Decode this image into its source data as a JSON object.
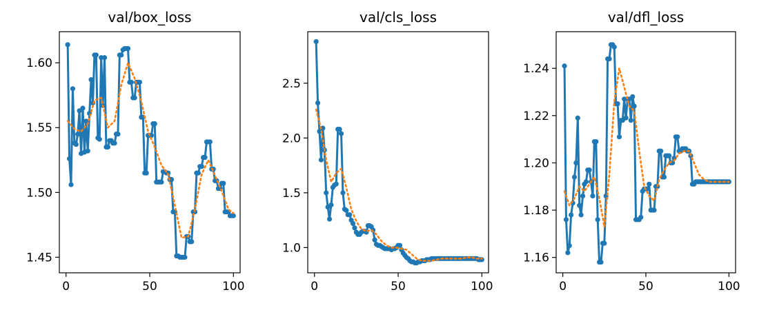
{
  "chart_data": [
    {
      "type": "line",
      "title": "val/box_loss",
      "xlabel": "",
      "ylabel": "",
      "xlim": [
        -4,
        104
      ],
      "ylim": [
        1.438,
        1.624
      ],
      "xticks": [
        0,
        50,
        100
      ],
      "xtick_labels": [
        "0",
        "50",
        "100"
      ],
      "yticks": [
        1.45,
        1.5,
        1.55,
        1.6
      ],
      "ytick_labels": [
        "1.45",
        "1.50",
        "1.55",
        "1.60"
      ],
      "grid": false,
      "series": [
        {
          "style": "solid-markers",
          "color": "#1f77b4",
          "x": [
            1,
            2,
            3,
            4,
            5,
            6,
            7,
            8,
            9,
            10,
            11,
            12,
            13,
            14,
            15,
            16,
            17,
            18,
            19,
            20,
            21,
            22,
            23,
            24,
            25,
            26,
            27,
            28,
            29,
            30,
            31,
            32,
            33,
            34,
            35,
            36,
            37,
            38,
            39,
            40,
            41,
            42,
            43,
            44,
            45,
            46,
            47,
            48,
            49,
            50,
            51,
            52,
            53,
            54,
            55,
            56,
            57,
            58,
            59,
            60,
            61,
            62,
            63,
            64,
            65,
            66,
            67,
            68,
            69,
            70,
            71,
            72,
            73,
            74,
            75,
            76,
            77,
            78,
            79,
            80,
            81,
            82,
            83,
            84,
            85,
            86,
            87,
            88,
            89,
            90,
            91,
            92,
            93,
            94,
            95,
            96,
            97,
            98,
            99,
            100
          ],
          "y": [
            1.614,
            1.526,
            1.506,
            1.58,
            1.538,
            1.537,
            1.545,
            1.563,
            1.53,
            1.565,
            1.531,
            1.555,
            1.532,
            1.561,
            1.587,
            1.569,
            1.606,
            1.606,
            1.542,
            1.541,
            1.604,
            1.567,
            1.604,
            1.535,
            1.535,
            1.54,
            1.54,
            1.538,
            1.538,
            1.545,
            1.545,
            1.606,
            1.606,
            1.61,
            1.611,
            1.611,
            1.611,
            1.585,
            1.585,
            1.573,
            1.573,
            1.585,
            1.585,
            1.585,
            1.558,
            1.558,
            1.515,
            1.515,
            1.544,
            1.544,
            1.544,
            1.553,
            1.553,
            1.508,
            1.508,
            1.508,
            1.508,
            1.516,
            1.516,
            1.515,
            1.515,
            1.51,
            1.51,
            1.485,
            1.485,
            1.451,
            1.451,
            1.45,
            1.45,
            1.45,
            1.45,
            1.466,
            1.466,
            1.462,
            1.462,
            1.485,
            1.485,
            1.515,
            1.515,
            1.52,
            1.52,
            1.527,
            1.527,
            1.539,
            1.539,
            1.539,
            1.518,
            1.518,
            1.509,
            1.509,
            1.503,
            1.503,
            1.507,
            1.507,
            1.485,
            1.485,
            1.485,
            1.482,
            1.482,
            1.482
          ]
        },
        {
          "style": "dotted",
          "color": "#ff7f0e",
          "x": [
            1,
            5,
            9,
            13,
            17,
            21,
            25,
            29,
            33,
            37,
            41,
            45,
            49,
            53,
            57,
            61,
            65,
            69,
            73,
            77,
            81,
            85,
            89,
            93,
            97,
            100
          ],
          "y": [
            1.555,
            1.549,
            1.547,
            1.553,
            1.571,
            1.573,
            1.55,
            1.555,
            1.583,
            1.6,
            1.588,
            1.57,
            1.547,
            1.535,
            1.521,
            1.514,
            1.49,
            1.465,
            1.466,
            1.487,
            1.514,
            1.525,
            1.513,
            1.501,
            1.487,
            1.484
          ]
        }
      ]
    },
    {
      "type": "line",
      "title": "val/cls_loss",
      "xlabel": "",
      "ylabel": "",
      "xlim": [
        -4,
        104
      ],
      "ylim": [
        0.77,
        2.97
      ],
      "xticks": [
        0,
        50,
        100
      ],
      "xtick_labels": [
        "0",
        "50",
        "100"
      ],
      "yticks": [
        1.0,
        1.5,
        2.0,
        2.5
      ],
      "ytick_labels": [
        "1.0",
        "1.5",
        "2.0",
        "2.5"
      ],
      "grid": false,
      "series": [
        {
          "style": "solid-markers",
          "color": "#1f77b4",
          "x": [
            1,
            2,
            3,
            4,
            5,
            6,
            7,
            8,
            9,
            10,
            11,
            12,
            13,
            14,
            15,
            16,
            17,
            18,
            19,
            20,
            21,
            22,
            23,
            24,
            25,
            26,
            27,
            28,
            29,
            30,
            31,
            32,
            33,
            34,
            35,
            36,
            37,
            38,
            39,
            40,
            41,
            42,
            43,
            44,
            45,
            46,
            47,
            48,
            49,
            50,
            51,
            52,
            53,
            54,
            55,
            56,
            57,
            58,
            59,
            60,
            61,
            62,
            63,
            64,
            65,
            66,
            67,
            68,
            69,
            70,
            71,
            72,
            73,
            74,
            75,
            76,
            77,
            78,
            79,
            80,
            81,
            82,
            83,
            84,
            85,
            86,
            87,
            88,
            89,
            90,
            91,
            92,
            93,
            94,
            95,
            96,
            97,
            98,
            99,
            100
          ],
          "y": [
            2.88,
            2.32,
            2.06,
            1.8,
            2.09,
            1.89,
            1.5,
            1.37,
            1.26,
            1.39,
            1.55,
            1.57,
            1.58,
            2.08,
            2.08,
            2.04,
            1.5,
            1.35,
            1.34,
            1.3,
            1.3,
            1.25,
            1.22,
            1.18,
            1.14,
            1.12,
            1.12,
            1.14,
            1.15,
            1.15,
            1.14,
            1.2,
            1.2,
            1.19,
            1.16,
            1.07,
            1.03,
            1.02,
            1.02,
            1.01,
            1.0,
            0.99,
            0.99,
            0.99,
            0.99,
            0.98,
            0.99,
            0.99,
            1.0,
            1.02,
            1.02,
            0.98,
            0.95,
            0.93,
            0.91,
            0.9,
            0.88,
            0.87,
            0.87,
            0.86,
            0.86,
            0.87,
            0.87,
            0.88,
            0.88,
            0.88,
            0.89,
            0.89,
            0.89,
            0.9,
            0.9,
            0.9,
            0.9,
            0.9,
            0.9,
            0.9,
            0.9,
            0.9,
            0.9,
            0.9,
            0.9,
            0.9,
            0.9,
            0.9,
            0.9,
            0.9,
            0.9,
            0.9,
            0.9,
            0.9,
            0.9,
            0.9,
            0.9,
            0.9,
            0.9,
            0.9,
            0.9,
            0.89,
            0.89,
            0.89
          ]
        },
        {
          "style": "dotted",
          "color": "#ff7f0e",
          "x": [
            1,
            4,
            7,
            10,
            13,
            16,
            19,
            22,
            25,
            28,
            31,
            34,
            37,
            40,
            43,
            46,
            49,
            52,
            55,
            58,
            61,
            64,
            67,
            70,
            73,
            76,
            79,
            82,
            85,
            88,
            91,
            94,
            97,
            100
          ],
          "y": [
            2.26,
            2.08,
            1.8,
            1.6,
            1.68,
            1.72,
            1.55,
            1.35,
            1.24,
            1.17,
            1.15,
            1.16,
            1.12,
            1.06,
            1.02,
            1.0,
            1.0,
            0.99,
            0.98,
            0.94,
            0.9,
            0.88,
            0.88,
            0.88,
            0.89,
            0.9,
            0.9,
            0.9,
            0.9,
            0.9,
            0.91,
            0.91,
            0.9,
            0.9
          ]
        }
      ]
    },
    {
      "type": "line",
      "title": "val/dfl_loss",
      "xlabel": "",
      "ylabel": "",
      "xlim": [
        -4,
        104
      ],
      "ylim": [
        1.1535,
        1.2555
      ],
      "xticks": [
        0,
        50,
        100
      ],
      "xtick_labels": [
        "0",
        "50",
        "100"
      ],
      "yticks": [
        1.16,
        1.18,
        1.2,
        1.22,
        1.24
      ],
      "ytick_labels": [
        "1.16",
        "1.18",
        "1.20",
        "1.22",
        "1.24"
      ],
      "grid": false,
      "series": [
        {
          "style": "solid-markers",
          "color": "#1f77b4",
          "x": [
            1,
            2,
            3,
            4,
            5,
            6,
            7,
            8,
            9,
            10,
            11,
            12,
            13,
            14,
            15,
            16,
            17,
            18,
            19,
            20,
            21,
            22,
            23,
            24,
            25,
            26,
            27,
            28,
            29,
            30,
            31,
            32,
            33,
            34,
            35,
            36,
            37,
            38,
            39,
            40,
            41,
            42,
            43,
            44,
            45,
            46,
            47,
            48,
            49,
            50,
            51,
            52,
            53,
            54,
            55,
            56,
            57,
            58,
            59,
            60,
            61,
            62,
            63,
            64,
            65,
            66,
            67,
            68,
            69,
            70,
            71,
            72,
            73,
            74,
            75,
            76,
            77,
            78,
            79,
            80,
            81,
            82,
            83,
            84,
            85,
            86,
            87,
            88,
            89,
            90,
            91,
            92,
            93,
            94,
            95,
            96,
            97,
            98,
            99,
            100
          ],
          "y": [
            1.241,
            1.176,
            1.162,
            1.165,
            1.178,
            1.183,
            1.194,
            1.2,
            1.219,
            1.182,
            1.178,
            1.186,
            1.191,
            1.192,
            1.197,
            1.197,
            1.192,
            1.186,
            1.209,
            1.209,
            1.176,
            1.158,
            1.158,
            1.166,
            1.166,
            1.186,
            1.244,
            1.244,
            1.25,
            1.25,
            1.249,
            1.225,
            1.225,
            1.211,
            1.218,
            1.218,
            1.227,
            1.219,
            1.227,
            1.227,
            1.218,
            1.228,
            1.224,
            1.176,
            1.176,
            1.176,
            1.177,
            1.188,
            1.189,
            1.189,
            1.189,
            1.191,
            1.18,
            1.18,
            1.18,
            1.19,
            1.19,
            1.205,
            1.205,
            1.194,
            1.194,
            1.203,
            1.203,
            1.203,
            1.2,
            1.2,
            1.202,
            1.211,
            1.211,
            1.205,
            1.205,
            1.206,
            1.206,
            1.206,
            1.205,
            1.205,
            1.203,
            1.191,
            1.191,
            1.192,
            1.192,
            1.192,
            1.192,
            1.192,
            1.192,
            1.192,
            1.192,
            1.192,
            1.192,
            1.192,
            1.192,
            1.192,
            1.192,
            1.192,
            1.192,
            1.192,
            1.192,
            1.192,
            1.192,
            1.192
          ]
        },
        {
          "style": "dotted",
          "color": "#ff7f0e",
          "x": [
            1,
            4,
            7,
            10,
            13,
            16,
            19,
            22,
            25,
            28,
            31,
            34,
            37,
            40,
            43,
            46,
            49,
            52,
            55,
            58,
            61,
            64,
            67,
            70,
            73,
            76,
            79,
            82,
            85,
            88,
            91,
            94,
            97,
            100
          ],
          "y": [
            1.188,
            1.182,
            1.185,
            1.19,
            1.188,
            1.191,
            1.194,
            1.185,
            1.173,
            1.195,
            1.226,
            1.24,
            1.232,
            1.224,
            1.222,
            1.205,
            1.19,
            1.186,
            1.184,
            1.193,
            1.197,
            1.2,
            1.201,
            1.204,
            1.205,
            1.205,
            1.2,
            1.195,
            1.193,
            1.192,
            1.192,
            1.192,
            1.192,
            1.192
          ]
        }
      ]
    }
  ]
}
